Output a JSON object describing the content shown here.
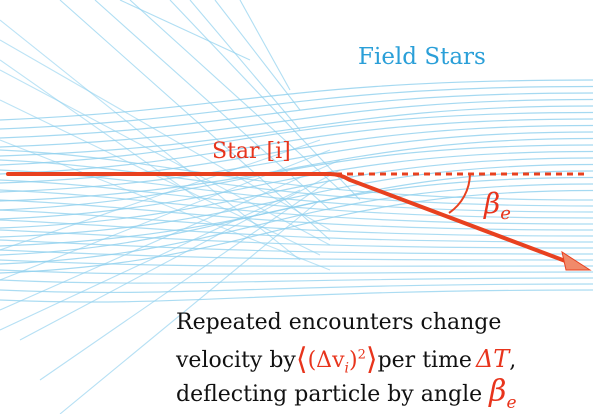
{
  "labels": {
    "field_stars": "Field Stars",
    "star_i": "Star [i]",
    "beta": "β",
    "beta_sub": "e"
  },
  "caption": {
    "line1": "Repeated encounters change",
    "line2_pre": "velocity by",
    "line2_math_open": "⟨",
    "line2_math_inner": "(Δv",
    "line2_math_sub": "i",
    "line2_math_close_paren": ")",
    "line2_math_sup": "2",
    "line2_math_close": "⟩",
    "line2_mid": "per time",
    "line2_delta": "ΔT",
    "line2_end": ",",
    "line3_pre": "deflecting particle by angle",
    "line3_beta": "β",
    "line3_beta_sub": "e"
  },
  "colors": {
    "field_star_line": "#8fd0ee",
    "star_path": "#e8411f",
    "label_blue": "#2a9fd8",
    "label_red": "#e8341c",
    "caption_text": "#111111"
  }
}
